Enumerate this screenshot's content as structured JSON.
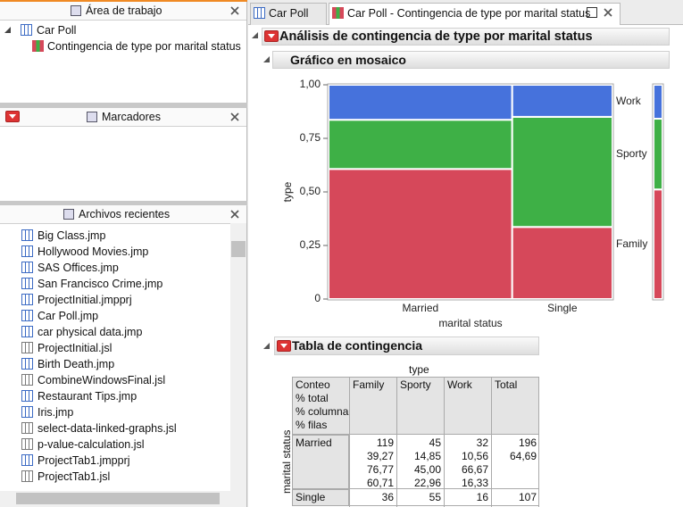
{
  "workspace": {
    "title": "Área de trabajo",
    "project": "Car Poll",
    "items": [
      "Contingencia de type por marital status"
    ]
  },
  "bookmarks": {
    "title": "Marcadores"
  },
  "recent": {
    "title": "Archivos recientes",
    "files": [
      "Big Class.jmp",
      "Hollywood Movies.jmp",
      "SAS Offices.jmp",
      "San Francisco Crime.jmp",
      "ProjectInitial.jmpprj",
      "Car Poll.jmp",
      "car physical data.jmp",
      "ProjectInitial.jsl",
      "Birth Death.jmp",
      "CombineWindowsFinal.jsl",
      "Restaurant Tips.jmp",
      "Iris.jmp",
      "select-data-linked-graphs.jsl",
      "p-value-calculation.jsl",
      "ProjectTab1.jmpprj",
      "ProjectTab1.jsl"
    ]
  },
  "tabs": [
    "Car Poll",
    "Car Poll - Contingencia de type por marital status"
  ],
  "report": {
    "title": "Análisis de contingencia de type por marital status",
    "mosaic": {
      "title": "Gráfico en mosaico",
      "y_label": "type",
      "x_label": "marital status",
      "categories": [
        "Married",
        "Single"
      ],
      "legend": [
        "Family",
        "Sporty",
        "Work"
      ],
      "colors": [
        "#d6485a",
        "#3eb046",
        "#4672dc"
      ],
      "ylim": [
        0,
        1
      ],
      "yticks": [
        0,
        {
          "value": 0.25,
          "label": "0,25"
        },
        {
          "value": 0.5,
          "label": "0,50"
        },
        {
          "value": 0.75,
          "label": "0,75"
        },
        {
          "value": 1,
          "label": "1,00"
        }
      ]
    },
    "table": {
      "title": "Tabla de contingencia",
      "column_header": "type",
      "row_header": "marital status",
      "stats": [
        "Conteo",
        "% total",
        "% columna",
        "% filas"
      ],
      "columns": [
        "Family",
        "Sporty",
        "Work",
        "Total"
      ],
      "rows": [
        {
          "label": "Married",
          "count": [
            119,
            45,
            32,
            196
          ],
          "pct_total": [
            "39,27",
            "14,85",
            "10,56",
            "64,69"
          ],
          "pct_col": [
            "76,77",
            "45,00",
            "66,67"
          ],
          "pct_row": [
            "60,71",
            "22,96",
            "16,33"
          ]
        },
        {
          "label": "Single",
          "count": [
            36,
            55,
            16,
            107
          ]
        }
      ]
    }
  }
}
